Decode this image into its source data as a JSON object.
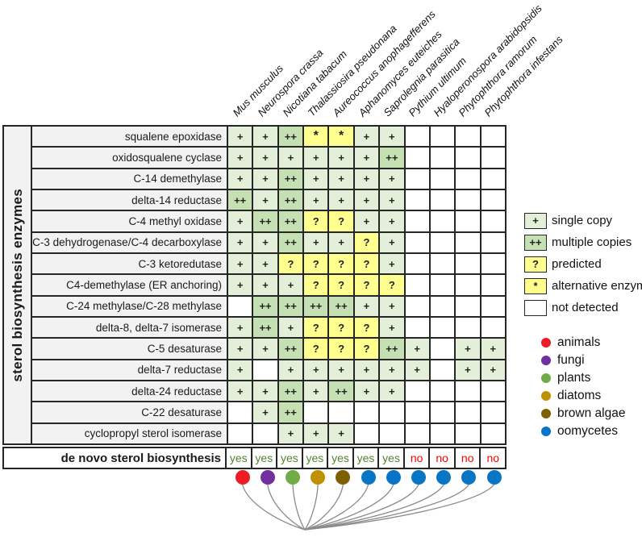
{
  "y_axis_label": "sterol biosynthesis enzymes",
  "chart_data": {
    "type": "heatmap",
    "title": "",
    "rows": [
      "squalene epoxidase",
      "oxidosqualene cyclase",
      "C-14 demethylase",
      "delta-14 reductase",
      "C-4 methyl oxidase",
      "C-3 dehydrogenase/C-4 decarboxylase",
      "C-3 ketoredutase",
      "C4-demethylase (ER anchoring)",
      "C-24 methylase/C-28 methylase",
      "delta-8, delta-7 isomerase",
      "C-5 desaturase",
      "delta-7 reductase",
      "delta-24 reductase",
      "C-22 desaturase",
      "cyclopropyl sterol isomerase"
    ],
    "columns": [
      "Mus musculus",
      "Neurospora crassa",
      "Nicotiana tabacum",
      "Thalassiosira pseudonana",
      "Aureococcus anophagefferens",
      "Aphanomyces euteiches",
      "Saprolegnia parasitica",
      "Pythium ultimum",
      "Hyaloperonospora arabidopsidis",
      "Phytophthora ramorum",
      "Phytophthora infestans"
    ],
    "column_groups": [
      "animals",
      "fungi",
      "plants",
      "diatoms",
      "brown algae",
      "oomycetes",
      "oomycetes",
      "oomycetes",
      "oomycetes",
      "oomycetes",
      "oomycetes"
    ],
    "values": [
      [
        "+",
        "+",
        "++",
        "*",
        "*",
        "+",
        "+",
        "",
        "",
        "",
        ""
      ],
      [
        "+",
        "+",
        "+",
        "+",
        "+",
        "+",
        "++",
        "",
        "",
        "",
        ""
      ],
      [
        "+",
        "+",
        "++",
        "+",
        "+",
        "+",
        "+",
        "",
        "",
        "",
        ""
      ],
      [
        "++",
        "+",
        "++",
        "+",
        "+",
        "+",
        "+",
        "",
        "",
        "",
        ""
      ],
      [
        "+",
        "++",
        "++",
        "?",
        "?",
        "+",
        "+",
        "",
        "",
        "",
        ""
      ],
      [
        "+",
        "+",
        "++",
        "+",
        "+",
        "?",
        "+",
        "",
        "",
        "",
        ""
      ],
      [
        "+",
        "+",
        "?",
        "?",
        "?",
        "?",
        "+",
        "",
        "",
        "",
        ""
      ],
      [
        "+",
        "+",
        "+",
        "?",
        "?",
        "?",
        "?",
        "",
        "",
        "",
        ""
      ],
      [
        "",
        "++",
        "++",
        "++",
        "++",
        "+",
        "+",
        "",
        "",
        "",
        ""
      ],
      [
        "+",
        "++",
        "+",
        "?",
        "?",
        "?",
        "+",
        "",
        "",
        "",
        ""
      ],
      [
        "+",
        "+",
        "++",
        "?",
        "?",
        "?",
        "++",
        "+",
        "",
        "+",
        "+"
      ],
      [
        "+",
        "",
        "+",
        "+",
        "+",
        "+",
        "+",
        "+",
        "",
        "+",
        "+"
      ],
      [
        "+",
        "+",
        "++",
        "+",
        "++",
        "+",
        "+",
        "",
        "",
        "",
        ""
      ],
      [
        "",
        "+",
        "++",
        "",
        "",
        "",
        "",
        "",
        "",
        "",
        ""
      ],
      [
        "",
        "",
        "+",
        "+",
        "+",
        "",
        "",
        "",
        "",
        "",
        ""
      ]
    ],
    "footer": {
      "label": "de novo sterol biosynthesis",
      "values": [
        "yes",
        "yes",
        "yes",
        "yes",
        "yes",
        "yes",
        "yes",
        "no",
        "no",
        "no",
        "no"
      ]
    }
  },
  "symbol_legend": [
    {
      "symbol": "+",
      "label": "single copy",
      "fill": "#e3efd9"
    },
    {
      "symbol": "++",
      "label": "multiple copies",
      "fill": "#c5e0b2"
    },
    {
      "symbol": "?",
      "label": "predicted",
      "fill": "#ffff8f"
    },
    {
      "symbol": "*",
      "label": "alternative enzyme",
      "fill": "#ffff8f"
    },
    {
      "symbol": "",
      "label": "not detected",
      "fill": "#ffffff"
    }
  ],
  "group_legend": [
    {
      "label": "animals",
      "color": "#ee1c25"
    },
    {
      "label": "fungi",
      "color": "#7030a0"
    },
    {
      "label": "plants",
      "color": "#70ad47"
    },
    {
      "label": "diatoms",
      "color": "#bf9000"
    },
    {
      "label": "brown algae",
      "color": "#7f6000"
    },
    {
      "label": "oomycetes",
      "color": "#0a74c7"
    }
  ],
  "colors": {
    "yes_text": "#538135",
    "no_text": "#fe0000",
    "grid": "#262626",
    "label_bg": "#f2f2f2",
    "tree_line": "#8a8a8a"
  }
}
